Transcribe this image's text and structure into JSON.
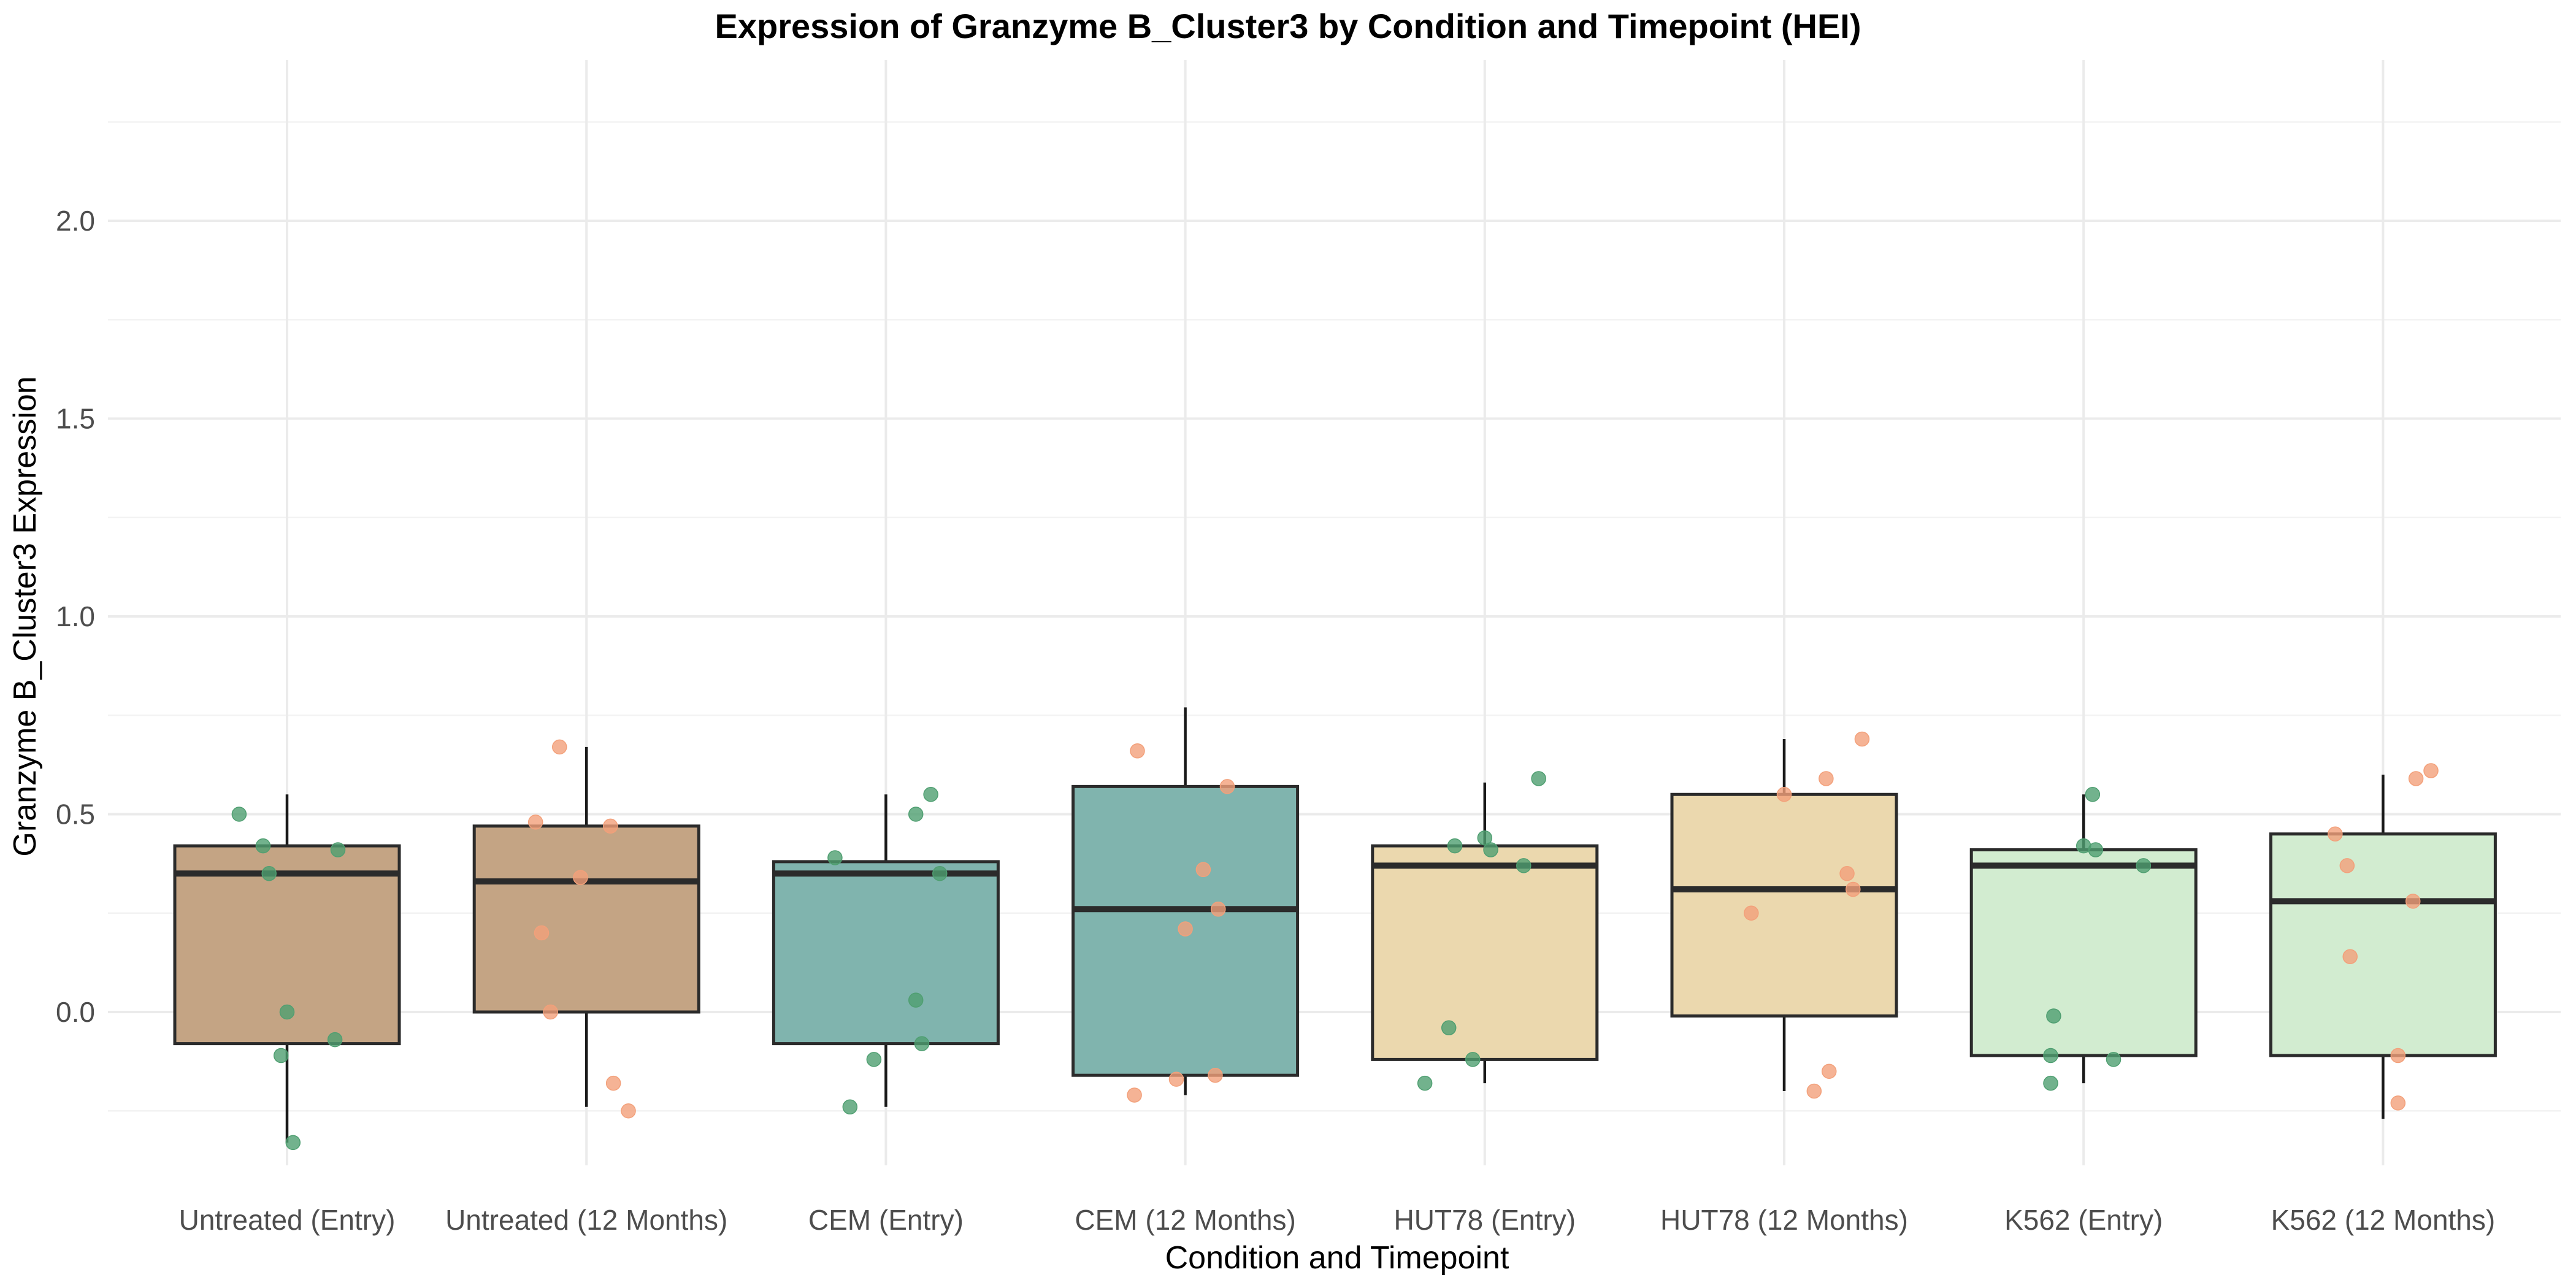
{
  "chart_data": {
    "type": "box",
    "title": "Expression of Granzyme B_Cluster3 by Condition and Timepoint (HEI)",
    "xlabel": "Condition and Timepoint",
    "ylabel": "Granzyme B_Cluster3 Expression",
    "ylim": [
      -0.47,
      2.39
    ],
    "yticks": [
      0.0,
      0.5,
      1.0,
      1.5,
      2.0
    ],
    "ytick_labels": [
      "0.0",
      "0.5",
      "1.0",
      "1.5",
      "2.0"
    ],
    "grid": true,
    "legend": "none",
    "categories": [
      "Untreated (Entry)",
      "Untreated (12 Months)",
      "CEM (Entry)",
      "CEM (12 Months)",
      "HUT78 (Entry)",
      "HUT78 (12 Months)",
      "K562 (Entry)",
      "K562 (12 Months)"
    ],
    "box_colors": [
      "#c4a484",
      "#c4a484",
      "#80b4ae",
      "#80b4ae",
      "#ebd8ae",
      "#ebd8ae",
      "#d2ecd0",
      "#d2ecd0"
    ],
    "point_colors": {
      "Entry": "#4f9f71",
      "12 Months": "#f3a07a"
    },
    "boxes": [
      {
        "q1": -0.08,
        "median": 0.35,
        "q3": 0.42,
        "whisker_low": -0.33,
        "whisker_high": 0.55
      },
      {
        "q1": 0.0,
        "median": 0.33,
        "q3": 0.47,
        "whisker_low": -0.24,
        "whisker_high": 0.67
      },
      {
        "q1": -0.08,
        "median": 0.35,
        "q3": 0.38,
        "whisker_low": -0.24,
        "whisker_high": 0.55
      },
      {
        "q1": -0.16,
        "median": 0.26,
        "q3": 0.57,
        "whisker_low": -0.21,
        "whisker_high": 0.77
      },
      {
        "q1": -0.12,
        "median": 0.37,
        "q3": 0.42,
        "whisker_low": -0.18,
        "whisker_high": 0.58
      },
      {
        "q1": -0.01,
        "median": 0.31,
        "q3": 0.55,
        "whisker_low": -0.2,
        "whisker_high": 0.69
      },
      {
        "q1": -0.11,
        "median": 0.37,
        "q3": 0.41,
        "whisker_low": -0.18,
        "whisker_high": 0.55
      },
      {
        "q1": -0.11,
        "median": 0.28,
        "q3": 0.45,
        "whisker_low": -0.27,
        "whisker_high": 0.6
      }
    ],
    "points": [
      {
        "x": [
          -0.16,
          -0.08,
          -0.06,
          -0.02,
          0.0,
          0.02,
          0.16,
          0.17
        ],
        "y": [
          0.5,
          0.42,
          0.35,
          -0.11,
          0.0,
          -0.33,
          -0.07,
          0.41
        ]
      },
      {
        "x": [
          -0.17,
          -0.15,
          -0.12,
          -0.09,
          -0.02,
          0.08,
          0.09,
          0.14
        ],
        "y": [
          0.48,
          0.2,
          0.0,
          0.67,
          0.34,
          0.47,
          -0.18,
          -0.25
        ]
      },
      {
        "x": [
          -0.17,
          -0.12,
          -0.04,
          0.1,
          0.1,
          0.12,
          0.15,
          0.18
        ],
        "y": [
          0.39,
          -0.24,
          -0.12,
          0.03,
          0.5,
          -0.08,
          0.55,
          0.35
        ]
      },
      {
        "x": [
          -0.17,
          -0.16,
          -0.03,
          -0.0,
          0.06,
          0.1,
          0.11,
          0.14
        ],
        "y": [
          -0.21,
          0.66,
          -0.17,
          0.21,
          0.36,
          -0.16,
          0.26,
          0.57
        ]
      },
      {
        "x": [
          -0.2,
          -0.12,
          -0.1,
          -0.04,
          -0.0,
          0.02,
          0.13,
          0.18
        ],
        "y": [
          -0.18,
          -0.04,
          0.42,
          -0.12,
          0.44,
          0.41,
          0.37,
          0.59
        ]
      },
      {
        "x": [
          -0.11,
          0.0,
          0.1,
          0.14,
          0.15,
          0.21,
          0.23,
          0.26
        ],
        "y": [
          0.25,
          0.55,
          -0.2,
          0.59,
          -0.15,
          0.35,
          0.31,
          0.69
        ]
      },
      {
        "x": [
          -0.11,
          -0.11,
          -0.1,
          0.0,
          0.03,
          0.04,
          0.1,
          0.2
        ],
        "y": [
          -0.18,
          -0.11,
          -0.01,
          0.42,
          0.55,
          0.41,
          -0.12,
          0.37
        ]
      },
      {
        "x": [
          -0.16,
          -0.12,
          -0.11,
          0.05,
          0.05,
          0.1,
          0.11,
          0.16
        ],
        "y": [
          0.45,
          0.37,
          0.14,
          -0.23,
          -0.11,
          0.28,
          0.59,
          0.61
        ]
      }
    ],
    "point_groups": [
      "Entry",
      "12 Months",
      "Entry",
      "12 Months",
      "Entry",
      "12 Months",
      "Entry",
      "12 Months"
    ]
  }
}
